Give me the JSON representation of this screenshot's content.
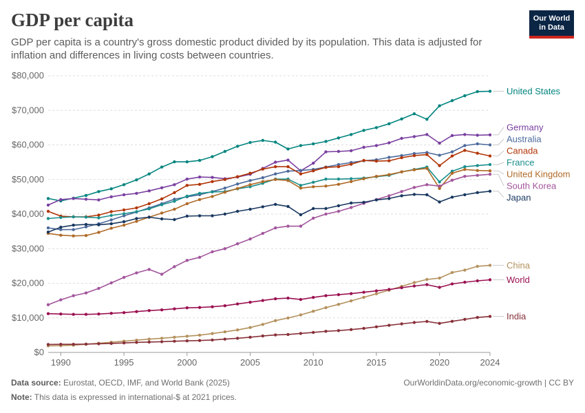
{
  "header": {
    "title": "GDP per capita",
    "subtitle": "GDP per capita is a country's gross domestic product divided by its population. This data is adjusted for inflation and differences in living costs between countries.",
    "logo_line1": "Our World",
    "logo_line2": "in Data"
  },
  "footer": {
    "source_label": "Data source:",
    "source_text": "Eurostat, OECD, IMF, and World Bank (2025)",
    "note_label": "Note:",
    "note_text": "This data is expressed in international-$ at 2021 prices.",
    "site": "OurWorldinData.org/economic-growth | CC BY"
  },
  "chart_data": {
    "type": "line",
    "title": "GDP per capita",
    "xlabel": "",
    "ylabel": "",
    "xlim": [
      1989,
      2024
    ],
    "ylim": [
      0,
      80000
    ],
    "x_ticks": [
      1990,
      1995,
      2000,
      2005,
      2010,
      2015,
      2020,
      2024
    ],
    "y_ticks": [
      0,
      10000,
      20000,
      30000,
      40000,
      50000,
      60000,
      70000,
      80000
    ],
    "y_tick_labels": [
      "$0",
      "$10,000",
      "$20,000",
      "$30,000",
      "$40,000",
      "$50,000",
      "$60,000",
      "$70,000",
      "$80,000"
    ],
    "grid": "horizontal dashed",
    "x": [
      1989,
      1990,
      1991,
      1992,
      1993,
      1994,
      1995,
      1996,
      1997,
      1998,
      1999,
      2000,
      2001,
      2002,
      2003,
      2004,
      2005,
      2006,
      2007,
      2008,
      2009,
      2010,
      2011,
      2012,
      2013,
      2014,
      2015,
      2016,
      2017,
      2018,
      2019,
      2020,
      2021,
      2022,
      2023,
      2024
    ],
    "series": [
      {
        "name": "United States",
        "color": "#00847e",
        "values": [
          44500,
          43800,
          44600,
          45400,
          46500,
          47300,
          48500,
          49900,
          51600,
          53600,
          55100,
          55100,
          55500,
          56600,
          58100,
          59600,
          60700,
          61300,
          60800,
          58800,
          59800,
          60300,
          61000,
          62000,
          63000,
          64200,
          65000,
          66100,
          67500,
          69000,
          67400,
          71300,
          72800,
          74200,
          75400,
          75500
        ]
      },
      {
        "name": "Germany",
        "color": "#883039",
        "display_color": "#7a3fa0",
        "values": [
          42600,
          44200,
          44500,
          44300,
          44100,
          45000,
          45600,
          46000,
          46700,
          47600,
          48500,
          50100,
          50700,
          50600,
          50200,
          50700,
          51500,
          53200,
          55000,
          55600,
          52500,
          54700,
          58000,
          58100,
          58300,
          59300,
          59800,
          60600,
          61900,
          62400,
          63000,
          60500,
          62700,
          63000,
          62800,
          62900
        ]
      },
      {
        "name": "Australia",
        "color": "#4c6a9c",
        "values": [
          36000,
          35500,
          35500,
          36300,
          37200,
          38300,
          39500,
          40600,
          41800,
          43000,
          44300,
          45000,
          45600,
          46500,
          47500,
          48700,
          49700,
          50500,
          51600,
          52400,
          52600,
          52900,
          53600,
          54300,
          54900,
          55400,
          55700,
          56400,
          56900,
          57500,
          57800,
          57000,
          58000,
          59800,
          60300,
          60000
        ]
      },
      {
        "name": "Canada",
        "color": "#b13507",
        "values": [
          40800,
          39400,
          39200,
          39200,
          39700,
          40700,
          41200,
          41800,
          43000,
          44400,
          46200,
          48300,
          48600,
          49400,
          50000,
          50800,
          51800,
          53000,
          53700,
          53700,
          51600,
          52500,
          53500,
          53700,
          54400,
          55500,
          55300,
          55400,
          56300,
          56900,
          57200,
          54000,
          56800,
          58400,
          57600,
          56800
        ]
      },
      {
        "name": "France",
        "color": "#286bbb",
        "display_color": "#1a8f8c",
        "values": [
          38700,
          39000,
          39200,
          39100,
          38900,
          39600,
          40100,
          40700,
          41500,
          42700,
          43700,
          45200,
          46000,
          46400,
          46500,
          47300,
          47900,
          48900,
          50100,
          50100,
          48300,
          49200,
          50100,
          50100,
          50200,
          50400,
          50800,
          51200,
          52200,
          52900,
          53600,
          49300,
          52400,
          53700,
          54000,
          54300
        ]
      },
      {
        "name": "United Kingdom",
        "color": "#c15065",
        "display_color": "#b06a27",
        "values": [
          34400,
          33900,
          33700,
          33800,
          34700,
          35900,
          36800,
          37900,
          39100,
          40300,
          41400,
          43000,
          44200,
          45100,
          46300,
          47400,
          48500,
          49400,
          50000,
          49700,
          47500,
          47900,
          48100,
          48600,
          49400,
          50200,
          50900,
          51400,
          52200,
          52800,
          53200,
          47400,
          51800,
          52900,
          52600,
          52500
        ]
      },
      {
        "name": "South Korea",
        "color": "#a2559c",
        "values": [
          13800,
          15200,
          16400,
          17200,
          18500,
          20100,
          21700,
          23000,
          24000,
          22600,
          24800,
          26600,
          27500,
          29100,
          30000,
          31400,
          32800,
          34400,
          36000,
          36500,
          36500,
          38800,
          40000,
          40800,
          41900,
          43100,
          44200,
          45300,
          46500,
          47700,
          48500,
          48100,
          49800,
          50900,
          51200,
          51500
        ]
      },
      {
        "name": "Japan",
        "color": "#0b2545",
        "display_color": "#18375f",
        "values": [
          34800,
          36200,
          36800,
          37000,
          36900,
          37200,
          37800,
          38700,
          39100,
          38600,
          38400,
          39400,
          39500,
          39500,
          40000,
          40800,
          41400,
          42100,
          42800,
          42200,
          39800,
          41600,
          41600,
          42400,
          43200,
          43400,
          44100,
          44500,
          45300,
          45700,
          45600,
          43500,
          44900,
          45600,
          46200,
          46600
        ]
      },
      {
        "name": "China",
        "color": "#9a5129",
        "display_color": "#b4915d",
        "values": [
          1900,
          1950,
          2100,
          2350,
          2650,
          2950,
          3250,
          3550,
          3850,
          4100,
          4400,
          4700,
          5000,
          5450,
          5950,
          6500,
          7200,
          8100,
          9200,
          9950,
          10850,
          11900,
          12950,
          13900,
          14900,
          15950,
          16950,
          18000,
          19100,
          20200,
          21100,
          21500,
          23100,
          23800,
          24900,
          25200
        ]
      },
      {
        "name": "World",
        "color": "#970046",
        "display_color": "#9a1050",
        "values": [
          11200,
          11100,
          11000,
          11000,
          11100,
          11300,
          11500,
          11800,
          12100,
          12300,
          12600,
          12900,
          13000,
          13200,
          13500,
          14000,
          14500,
          15000,
          15500,
          15700,
          15300,
          15900,
          16400,
          16700,
          17000,
          17400,
          17800,
          18200,
          18700,
          19200,
          19600,
          18800,
          19800,
          20300,
          20700,
          21000
        ]
      },
      {
        "name": "India",
        "color": "#883039",
        "values": [
          2300,
          2350,
          2350,
          2400,
          2500,
          2600,
          2750,
          2900,
          3000,
          3100,
          3250,
          3350,
          3450,
          3600,
          3850,
          4100,
          4400,
          4750,
          5050,
          5200,
          5500,
          5800,
          6100,
          6300,
          6600,
          6950,
          7400,
          7850,
          8250,
          8650,
          8950,
          8400,
          9000,
          9550,
          10100,
          10400
        ]
      }
    ]
  }
}
